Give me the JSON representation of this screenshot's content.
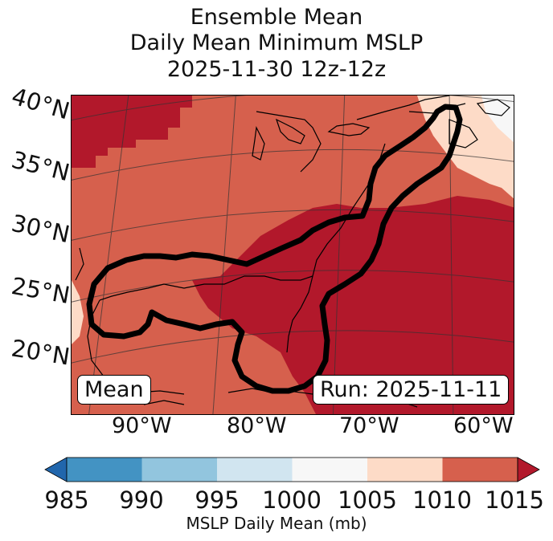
{
  "title": {
    "line1": "Ensemble Mean",
    "line2": "Daily Mean Minimum MSLP",
    "line3": "2025-11-30 12z-12z"
  },
  "map": {
    "lat_labels": [
      "40°N",
      "35°N",
      "30°N",
      "25°N",
      "20°N"
    ],
    "lon_labels": [
      "90°W",
      "80°W",
      "70°W",
      "60°W"
    ],
    "mean_badge": "Mean",
    "run_badge": "Run: 2025-11-11"
  },
  "colorbar": {
    "ticks": [
      "985",
      "990",
      "995",
      "1000",
      "1005",
      "1010",
      "1015"
    ],
    "label": "MSLP Daily Mean (mb)",
    "colors": {
      "below": "#2166ac",
      "c985_990": "#4393c3",
      "c990_995": "#92c5de",
      "c995_1000": "#d1e5f0",
      "c1000_1005": "#f7f7f7",
      "c1005_1010": "#fddbc7",
      "c1010_1015": "#d6604d",
      "above": "#b2182b"
    }
  }
}
